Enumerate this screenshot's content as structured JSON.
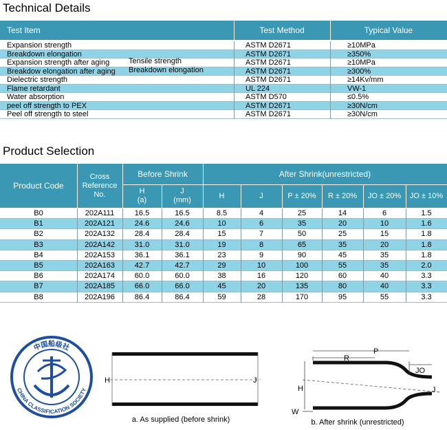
{
  "technical": {
    "title": "Technical Details",
    "headers": [
      "Test Item",
      "Test Method",
      "Typical Value"
    ],
    "rows": [
      {
        "item": "Expansion strength",
        "method": "ASTM D2671",
        "value": "≥10MPa"
      },
      {
        "item": "Breakdown elongation",
        "method": "ASTM D2671",
        "value": "≥350%"
      },
      {
        "item": "Expansion strength after aging",
        "sub": "Tensile strength",
        "method": "ASTM D2671",
        "value": "≥10MPa"
      },
      {
        "item": "Breakdow elongation after aging",
        "sub": "Breakdown elongation",
        "method": "ASTM D2671",
        "value": "≥300%"
      },
      {
        "item": "Dielectric strength",
        "method": "ASTM D2671",
        "value": "≥14Kv/mm"
      },
      {
        "item": "Flame retardant",
        "method": "UL 224",
        "value": "VW-1"
      },
      {
        "item": "Water absorption",
        "method": "ASTM D570",
        "value": "≤0.5%"
      },
      {
        "item": "peel off strength to PEX",
        "method": "ASTM D2671",
        "value": "≥30N/cm"
      },
      {
        "item": "Peel off strength to steel",
        "method": "ASTM D2671",
        "value": "≥30N/cm"
      }
    ]
  },
  "product": {
    "title": "Product Selection",
    "headers": {
      "code": "Product Code",
      "ref": [
        "Cross",
        "Reference",
        "No."
      ],
      "before": "Before Shrink",
      "after": "After Shrink(unrestricted)",
      "columns": [
        [
          "H",
          "(a)"
        ],
        [
          "J",
          "(mm)"
        ],
        [
          "H"
        ],
        [
          "J"
        ],
        [
          "P ± 20%"
        ],
        [
          "R ± 20%"
        ],
        [
          "JO ± 20%"
        ],
        [
          "JO ± 10%"
        ]
      ]
    },
    "rows": [
      [
        "B0",
        "202A111",
        "16.5",
        "16.5",
        "8.5",
        "4",
        "25",
        "14",
        "6",
        "1.5"
      ],
      [
        "B1",
        "202A121",
        "24.6",
        "24.6",
        "10",
        "6",
        "35",
        "20",
        "10",
        "1.6"
      ],
      [
        "B2",
        "202A132",
        "28.4",
        "28.4",
        "15",
        "7",
        "50",
        "25",
        "15",
        "1.8"
      ],
      [
        "B3",
        "202A142",
        "31.0",
        "31.0",
        "19",
        "8",
        "65",
        "35",
        "20",
        "1.8"
      ],
      [
        "B4",
        "202A153",
        "36.1",
        "36.1",
        "23",
        "9",
        "90",
        "45",
        "35",
        "1.8"
      ],
      [
        "B5",
        "202A163",
        "42.7",
        "42.7",
        "29",
        "10",
        "100",
        "55",
        "35",
        "2.0"
      ],
      [
        "B6",
        "202A174",
        "60.0",
        "60.0",
        "38",
        "16",
        "120",
        "60",
        "40",
        "3.3"
      ],
      [
        "B7",
        "202A185",
        "66.0",
        "66.0",
        "45",
        "20",
        "135",
        "80",
        "40",
        "3.3"
      ],
      [
        "B8",
        "202A196",
        "86.4",
        "86.4",
        "59",
        "28",
        "170",
        "95",
        "55",
        "3.3"
      ]
    ]
  },
  "logo": {
    "chinese": "中国船级社",
    "english": "CHINA CLASSIFICATION SOCIETY"
  },
  "diagram_a": {
    "h": "H",
    "j": "J",
    "caption": "a. As supplied (before shrink)"
  },
  "diagram_b": {
    "r": "R",
    "p": "P",
    "jo": "JO",
    "h": "H",
    "j": "J",
    "w": "W",
    "caption": "b. After shrink (unrestricted)"
  }
}
